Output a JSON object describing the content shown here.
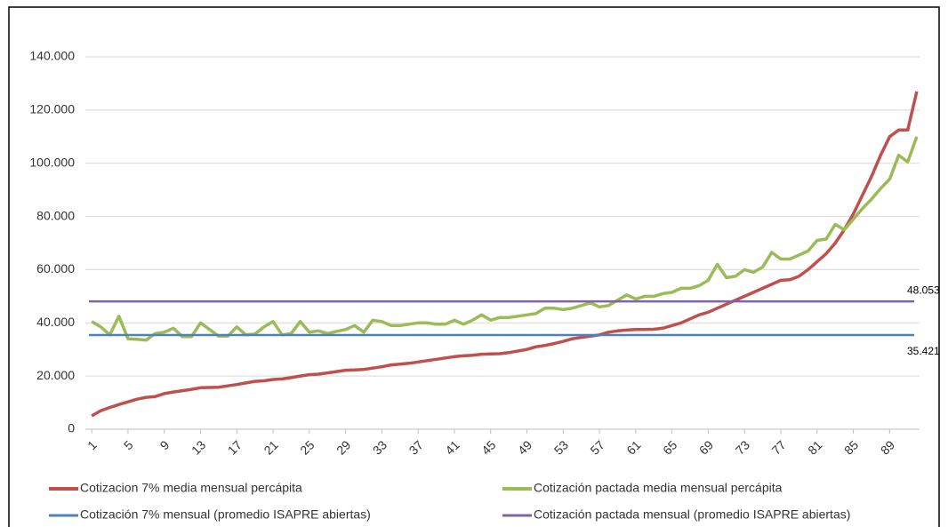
{
  "chart_data": {
    "type": "line",
    "x": [
      1,
      2,
      3,
      4,
      5,
      6,
      7,
      8,
      9,
      10,
      11,
      12,
      13,
      14,
      15,
      16,
      17,
      18,
      19,
      20,
      21,
      22,
      23,
      24,
      25,
      26,
      27,
      28,
      29,
      30,
      31,
      32,
      33,
      34,
      35,
      36,
      37,
      38,
      39,
      40,
      41,
      42,
      43,
      44,
      45,
      46,
      47,
      48,
      49,
      50,
      51,
      52,
      53,
      54,
      55,
      56,
      57,
      58,
      59,
      60,
      61,
      62,
      63,
      64,
      65,
      66,
      67,
      68,
      69,
      70,
      71,
      72,
      73,
      74,
      75,
      76,
      77,
      78,
      79,
      80,
      81,
      82,
      83,
      84,
      85,
      86,
      87,
      88,
      89,
      90,
      91,
      92
    ],
    "xlim": [
      0.3,
      92.3
    ],
    "xticks": [
      1,
      5,
      9,
      13,
      17,
      21,
      25,
      29,
      33,
      37,
      41,
      45,
      49,
      53,
      57,
      61,
      65,
      69,
      73,
      77,
      81,
      85,
      89
    ],
    "ylim": [
      0,
      140000
    ],
    "yticks": [
      {
        "value": 0,
        "label": "0"
      },
      {
        "value": 20000,
        "label": "20.000"
      },
      {
        "value": 40000,
        "label": "40.000"
      },
      {
        "value": 60000,
        "label": "60.000"
      },
      {
        "value": 80000,
        "label": "80.000"
      },
      {
        "value": 100000,
        "label": "100.000"
      },
      {
        "value": 120000,
        "label": "120.000"
      },
      {
        "value": 140000,
        "label": "140.000"
      }
    ],
    "grid": true,
    "legend": "bottom",
    "series": [
      {
        "name": "Cotizacion 7% media mensual percápita",
        "color": "#c0504d",
        "values": [
          5000,
          7000,
          8200,
          9300,
          10300,
          11300,
          12000,
          12300,
          13400,
          14000,
          14500,
          15000,
          15600,
          15700,
          15800,
          16300,
          16800,
          17400,
          18000,
          18200,
          18700,
          18900,
          19400,
          20000,
          20500,
          20700,
          21200,
          21700,
          22200,
          22300,
          22500,
          23000,
          23500,
          24200,
          24500,
          24800,
          25300,
          25800,
          26300,
          26800,
          27300,
          27600,
          27800,
          28200,
          28300,
          28400,
          28800,
          29400,
          30000,
          31000,
          31500,
          32200,
          33000,
          34000,
          34500,
          35000,
          35500,
          36500,
          37000,
          37300,
          37500,
          37500,
          37600,
          38000,
          39000,
          40000,
          41500,
          43000,
          44000,
          45500,
          47000,
          48500,
          50000,
          51500,
          53000,
          54500,
          56000,
          56200,
          57500,
          60000,
          63000,
          66000,
          70000,
          75000,
          81000,
          88000,
          95000,
          103000,
          110000,
          112500,
          112500,
          127000
        ]
      },
      {
        "name": "Cotización pactada media mensual percápita",
        "color": "#9bbb59",
        "values": [
          40500,
          38500,
          35500,
          42500,
          34000,
          33800,
          33500,
          36000,
          36500,
          38000,
          34800,
          34800,
          40000,
          37500,
          35000,
          35000,
          38500,
          35500,
          35800,
          38500,
          40500,
          35500,
          36000,
          40500,
          36500,
          37000,
          36000,
          36800,
          37500,
          39000,
          36500,
          41000,
          40500,
          39000,
          39000,
          39500,
          40000,
          40000,
          39500,
          39500,
          41000,
          39500,
          41000,
          43000,
          41000,
          42000,
          42000,
          42500,
          43000,
          43500,
          45500,
          45500,
          45000,
          45500,
          46500,
          47500,
          46000,
          46500,
          48500,
          50500,
          49000,
          50000,
          50000,
          51000,
          51500,
          53000,
          53000,
          54000,
          56000,
          62000,
          57000,
          57500,
          60000,
          59000,
          61000,
          66500,
          64000,
          64000,
          65500,
          67000,
          71000,
          71500,
          77000,
          75000,
          79000,
          83000,
          86500,
          90500,
          94000,
          103000,
          100500,
          110000
        ]
      },
      {
        "name": "Cotización 7% mensual (promedio ISAPRE abiertas)",
        "color": "#4f81bd",
        "value": 35421,
        "value_label": "35.421"
      },
      {
        "name": "Cotización pactada mensual (promedio ISAPRE abiertas)",
        "color": "#8064a2",
        "value": 48053,
        "value_label": "48.053"
      }
    ]
  }
}
